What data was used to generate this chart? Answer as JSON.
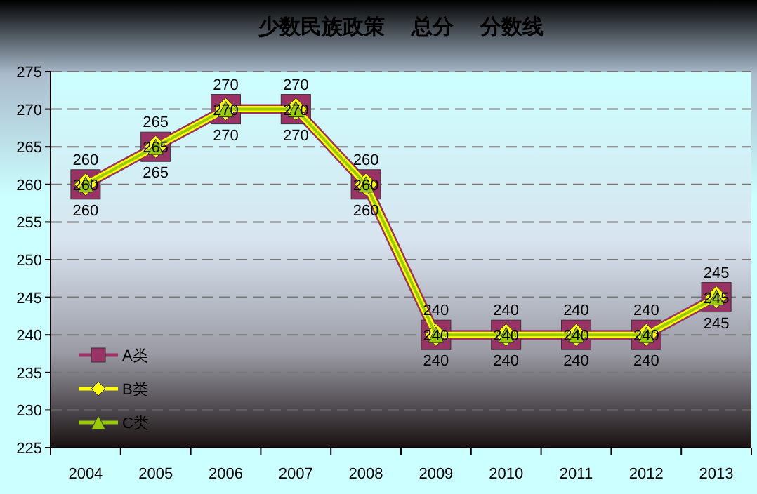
{
  "chart_data": {
    "type": "line",
    "title": "少数民族政策　 总分　 分数线",
    "categories": [
      "2004",
      "2005",
      "2006",
      "2007",
      "2008",
      "2009",
      "2010",
      "2011",
      "2012",
      "2013"
    ],
    "series": [
      {
        "name": "A类",
        "color": "#993366",
        "marker": "square",
        "values": [
          260,
          265,
          270,
          270,
          260,
          240,
          240,
          240,
          240,
          245
        ]
      },
      {
        "name": "B类",
        "color": "#ffff00",
        "marker": "diamond",
        "values": [
          260,
          265,
          270,
          270,
          260,
          240,
          240,
          240,
          240,
          245
        ]
      },
      {
        "name": "C类",
        "color": "#99cc00",
        "marker": "triangle",
        "values": [
          260,
          265,
          270,
          270,
          260,
          240,
          240,
          240,
          240,
          245
        ]
      }
    ],
    "ylim": [
      225,
      275
    ],
    "yticks": [
      225,
      230,
      235,
      240,
      245,
      250,
      255,
      260,
      265,
      270,
      275
    ],
    "grid": "y",
    "legend": "bottom left",
    "data_labels": true
  }
}
